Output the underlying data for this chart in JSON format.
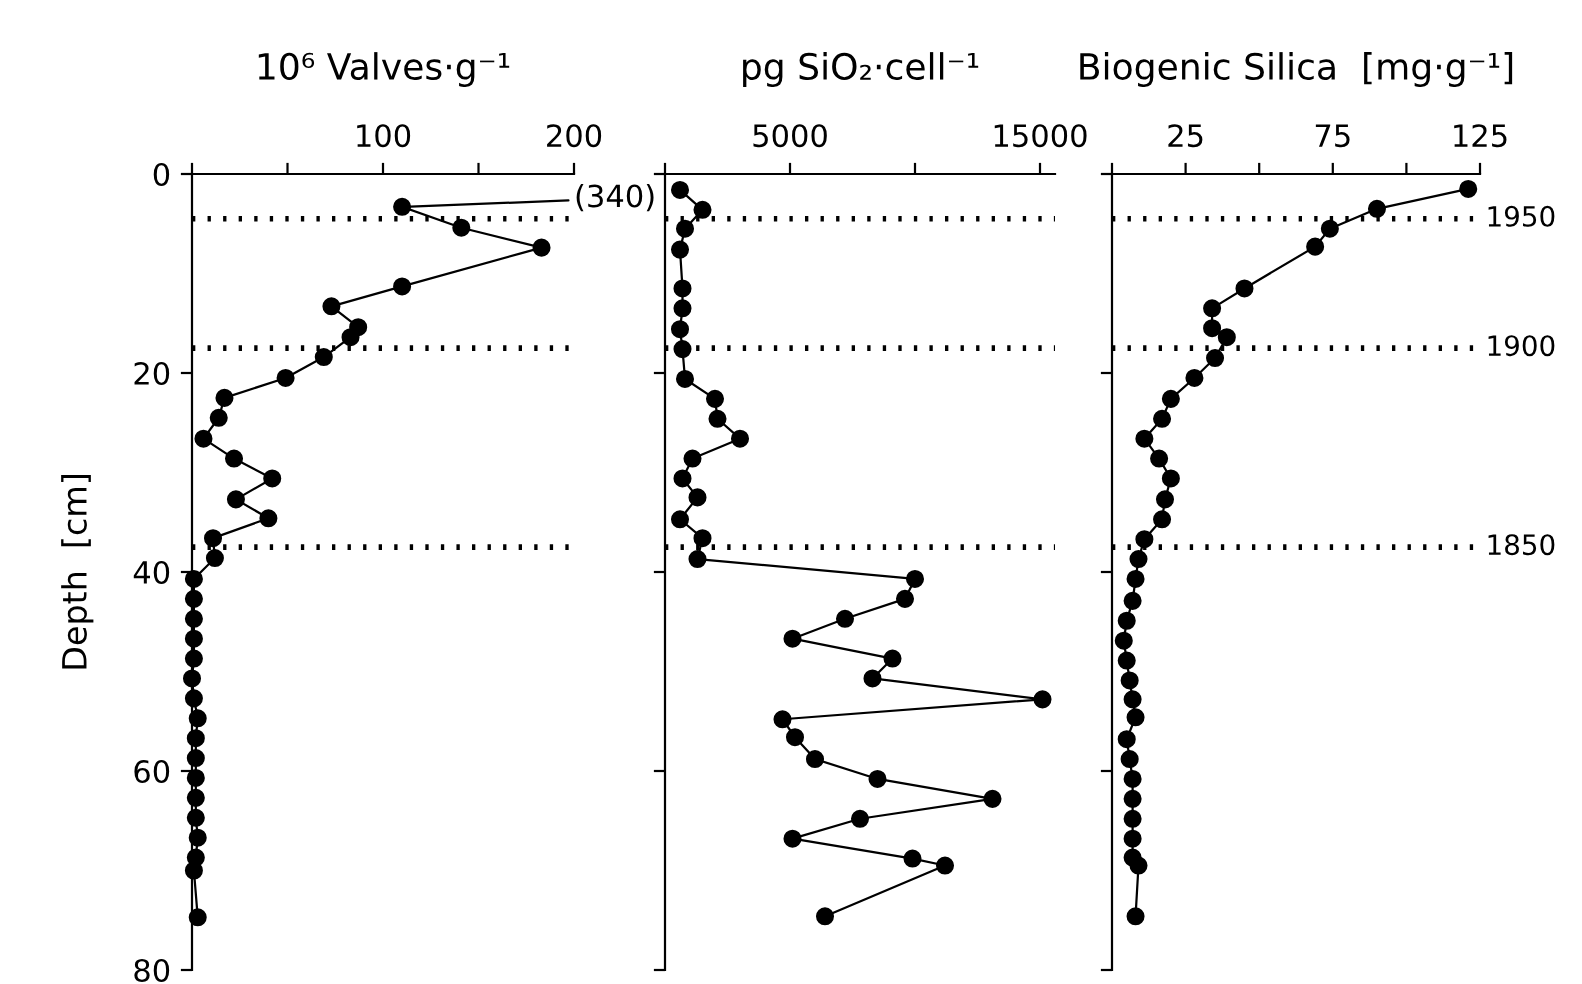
{
  "chart_data": [
    {
      "type": "line",
      "title": "10⁶ Valves·g⁻¹",
      "ylabel": "Depth  [cm]",
      "xlim": [
        0,
        200
      ],
      "xticks": [
        {
          "value": 0,
          "label": null
        },
        {
          "value": 50,
          "label": null
        },
        100,
        {
          "value": 150,
          "label": null
        },
        200
      ],
      "ylim": [
        80,
        0
      ],
      "yticks": [
        0,
        20,
        40,
        60,
        80
      ],
      "grid": false,
      "marker": "circle",
      "line_style": "solid",
      "series": [
        {
          "color": "#000000",
          "x": [
            110,
            141,
            183,
            110,
            73,
            87,
            83,
            69,
            49,
            17,
            14,
            6,
            22,
            42,
            23,
            40,
            11,
            12,
            1,
            1,
            1,
            1,
            1,
            0,
            1,
            3,
            2,
            2,
            2,
            2,
            2,
            3,
            2,
            1,
            3
          ],
          "values": [
            3.3,
            5.4,
            7.4,
            11.3,
            13.3,
            15.4,
            16.4,
            18.4,
            20.5,
            22.5,
            24.5,
            26.6,
            28.6,
            30.6,
            32.7,
            34.6,
            36.6,
            38.6,
            40.7,
            42.7,
            44.7,
            46.7,
            48.7,
            50.7,
            52.7,
            54.7,
            56.7,
            58.7,
            60.7,
            62.7,
            64.7,
            66.7,
            68.7,
            70.0,
            74.7
          ]
        }
      ],
      "annotations": [
        "(340)"
      ],
      "ref_lines": [
        {
          "axis": "y",
          "value": 4.5,
          "label": null,
          "color": "#000000",
          "line_style": "dotted"
        },
        {
          "axis": "y",
          "value": 17.5,
          "label": null,
          "color": "#000000",
          "line_style": "dotted"
        },
        {
          "axis": "y",
          "value": 37.5,
          "label": null,
          "color": "#000000",
          "line_style": "dotted"
        }
      ]
    },
    {
      "type": "line",
      "title": "pg SiO₂·cell⁻¹",
      "xlim": [
        0,
        15600
      ],
      "xticks": [
        {
          "value": 0,
          "label": null
        },
        5000,
        {
          "value": 10000,
          "label": null
        },
        15000
      ],
      "ylim": [
        80,
        0
      ],
      "yticks": [
        {
          "value": 0,
          "label": null
        },
        {
          "value": 20,
          "label": null
        },
        {
          "value": 40,
          "label": null
        },
        {
          "value": 60,
          "label": null
        },
        {
          "value": 80,
          "label": null
        }
      ],
      "tick_labels": "x",
      "grid": false,
      "marker": "circle",
      "line_style": "solid",
      "series": [
        {
          "color": "#000000",
          "x": [
            600,
            1500,
            800,
            600,
            700,
            700,
            600,
            700,
            800,
            2000,
            2100,
            3000,
            1100,
            700,
            1300,
            600,
            1500,
            1300,
            10000,
            9600,
            7200,
            5100,
            9100,
            8300,
            15100,
            4700,
            5200,
            6000,
            8500,
            13100,
            7800,
            5100,
            9900,
            11200,
            6400
          ],
          "values": [
            1.6,
            3.6,
            5.5,
            7.6,
            11.5,
            13.5,
            15.6,
            17.6,
            20.6,
            22.6,
            24.6,
            26.6,
            28.6,
            30.6,
            32.5,
            34.7,
            36.6,
            38.7,
            40.7,
            42.7,
            44.7,
            46.7,
            48.7,
            50.7,
            52.8,
            54.8,
            56.6,
            58.8,
            60.8,
            62.8,
            64.8,
            66.8,
            68.8,
            69.5,
            74.6
          ]
        }
      ],
      "ref_lines": [
        {
          "axis": "y",
          "value": 4.5,
          "label": null,
          "color": "#000000",
          "line_style": "dotted"
        },
        {
          "axis": "y",
          "value": 17.5,
          "label": null,
          "color": "#000000",
          "line_style": "dotted"
        },
        {
          "axis": "y",
          "value": 37.5,
          "label": null,
          "color": "#000000",
          "line_style": "dotted"
        }
      ]
    },
    {
      "type": "line",
      "title": "Biogenic Silica  [mg·g⁻¹]",
      "xlim": [
        0,
        125
      ],
      "xticks": [
        {
          "value": 0,
          "label": null
        },
        25,
        {
          "value": 50,
          "label": null
        },
        75,
        {
          "value": 100,
          "label": null
        },
        125
      ],
      "ylim": [
        80,
        0
      ],
      "yticks": [
        {
          "value": 0,
          "label": null
        },
        {
          "value": 20,
          "label": null
        },
        {
          "value": 40,
          "label": null
        },
        {
          "value": 60,
          "label": null
        },
        {
          "value": 80,
          "label": null
        }
      ],
      "tick_labels": "x",
      "grid": false,
      "marker": "circle",
      "line_style": "solid",
      "series": [
        {
          "color": "#000000",
          "x": [
            121,
            90,
            74,
            69,
            45,
            34,
            34,
            39,
            35,
            28,
            20,
            17,
            11,
            16,
            20,
            18,
            17,
            11,
            9,
            8,
            7,
            5,
            4,
            5,
            6,
            7,
            8,
            5,
            6,
            7,
            7,
            7,
            7,
            7,
            9,
            8
          ],
          "values": [
            1.5,
            3.5,
            5.5,
            7.3,
            11.5,
            13.5,
            15.5,
            16.4,
            18.5,
            20.5,
            22.6,
            24.6,
            26.6,
            28.6,
            30.6,
            32.7,
            34.7,
            36.7,
            38.7,
            40.7,
            42.9,
            44.9,
            46.9,
            48.9,
            50.9,
            52.8,
            54.6,
            56.8,
            58.8,
            60.8,
            62.8,
            64.8,
            66.8,
            68.7,
            69.5,
            74.6
          ]
        }
      ],
      "annotations": [
        "1950",
        "1900",
        "1850"
      ],
      "ref_lines": [
        {
          "axis": "y",
          "value": 4.5,
          "label": null,
          "color": "#000000",
          "line_style": "dotted"
        },
        {
          "axis": "y",
          "value": 17.5,
          "label": null,
          "color": "#000000",
          "line_style": "dotted"
        },
        {
          "axis": "y",
          "value": 37.5,
          "label": null,
          "color": "#000000",
          "line_style": "dotted"
        }
      ]
    }
  ]
}
